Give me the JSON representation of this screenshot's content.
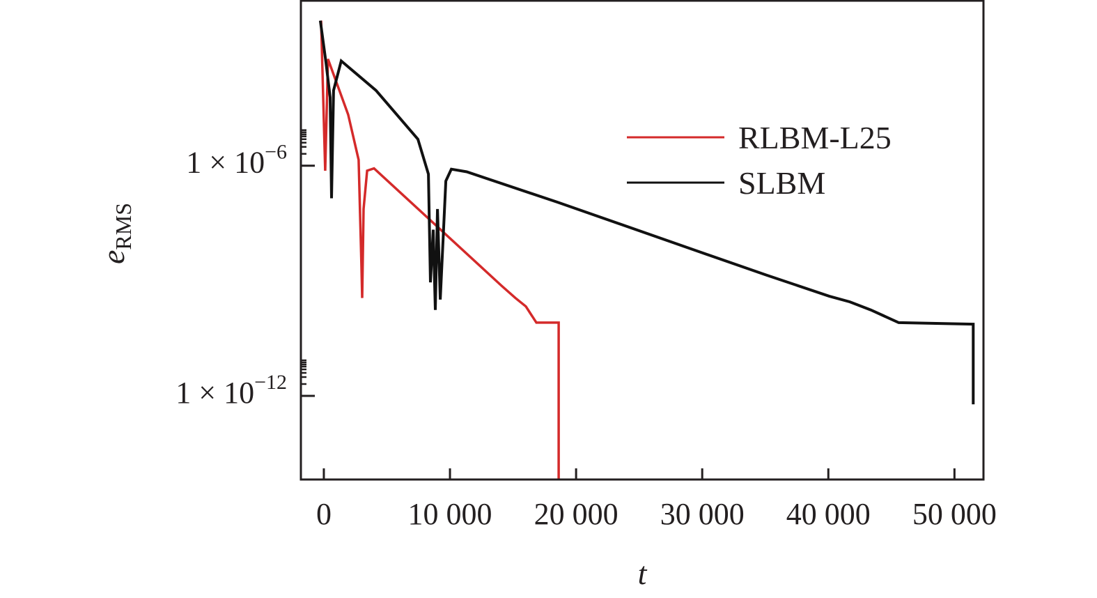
{
  "chart_data": {
    "type": "line",
    "title": "",
    "xlabel": "t",
    "ylabel_main": "e",
    "ylabel_sub": "RMS",
    "yscale": "log10",
    "xlim": [
      -1820,
      52300
    ],
    "ylim_log10": [
      -14.18,
      -1.7
    ],
    "x_ticks": [
      0,
      10000,
      20000,
      30000,
      40000,
      50000
    ],
    "x_tick_labels": [
      "0",
      "10 000",
      "20 000",
      "30 000",
      "40 000",
      "50 000"
    ],
    "y_ticks_log10": [
      -6,
      -12
    ],
    "y_tick_labels": [
      {
        "base": "1 × 10",
        "exp": "−6"
      },
      {
        "base": "1 × 10",
        "exp": "−12"
      }
    ],
    "legend_position": "upper-right",
    "series": [
      {
        "name": "RLBM-L25",
        "color": "#d42a2a",
        "t": [
          -220,
          110,
          330,
          1930,
          2760,
          2980,
          3040,
          3150,
          3430,
          3980,
          14090,
          15190,
          16020,
          16850,
          18620,
          18620
        ],
        "log10_e": [
          -2.22,
          -6.13,
          -3.22,
          -4.67,
          -5.85,
          -8.58,
          -9.45,
          -7.13,
          -6.13,
          -6.07,
          -9.13,
          -9.45,
          -9.67,
          -10.09,
          -10.09,
          -15
        ]
      },
      {
        "name": "SLBM",
        "color": "#111111",
        "t": [
          -280,
          170,
          500,
          610,
          770,
          1380,
          4140,
          7460,
          8290,
          8450,
          8670,
          8840,
          9010,
          9230,
          9670,
          10110,
          11330,
          18510,
          29560,
          35080,
          40060,
          41710,
          43370,
          45580,
          51490,
          51490
        ],
        "log10_e": [
          -2.22,
          -3.31,
          -4.22,
          -6.85,
          -4.04,
          -3.27,
          -4.04,
          -5.31,
          -6.22,
          -9.04,
          -7.67,
          -9.76,
          -7.13,
          -9.49,
          -6.4,
          -6.09,
          -6.16,
          -6.95,
          -8.22,
          -8.85,
          -9.4,
          -9.55,
          -9.76,
          -10.09,
          -10.13,
          -12.22
        ]
      }
    ]
  }
}
